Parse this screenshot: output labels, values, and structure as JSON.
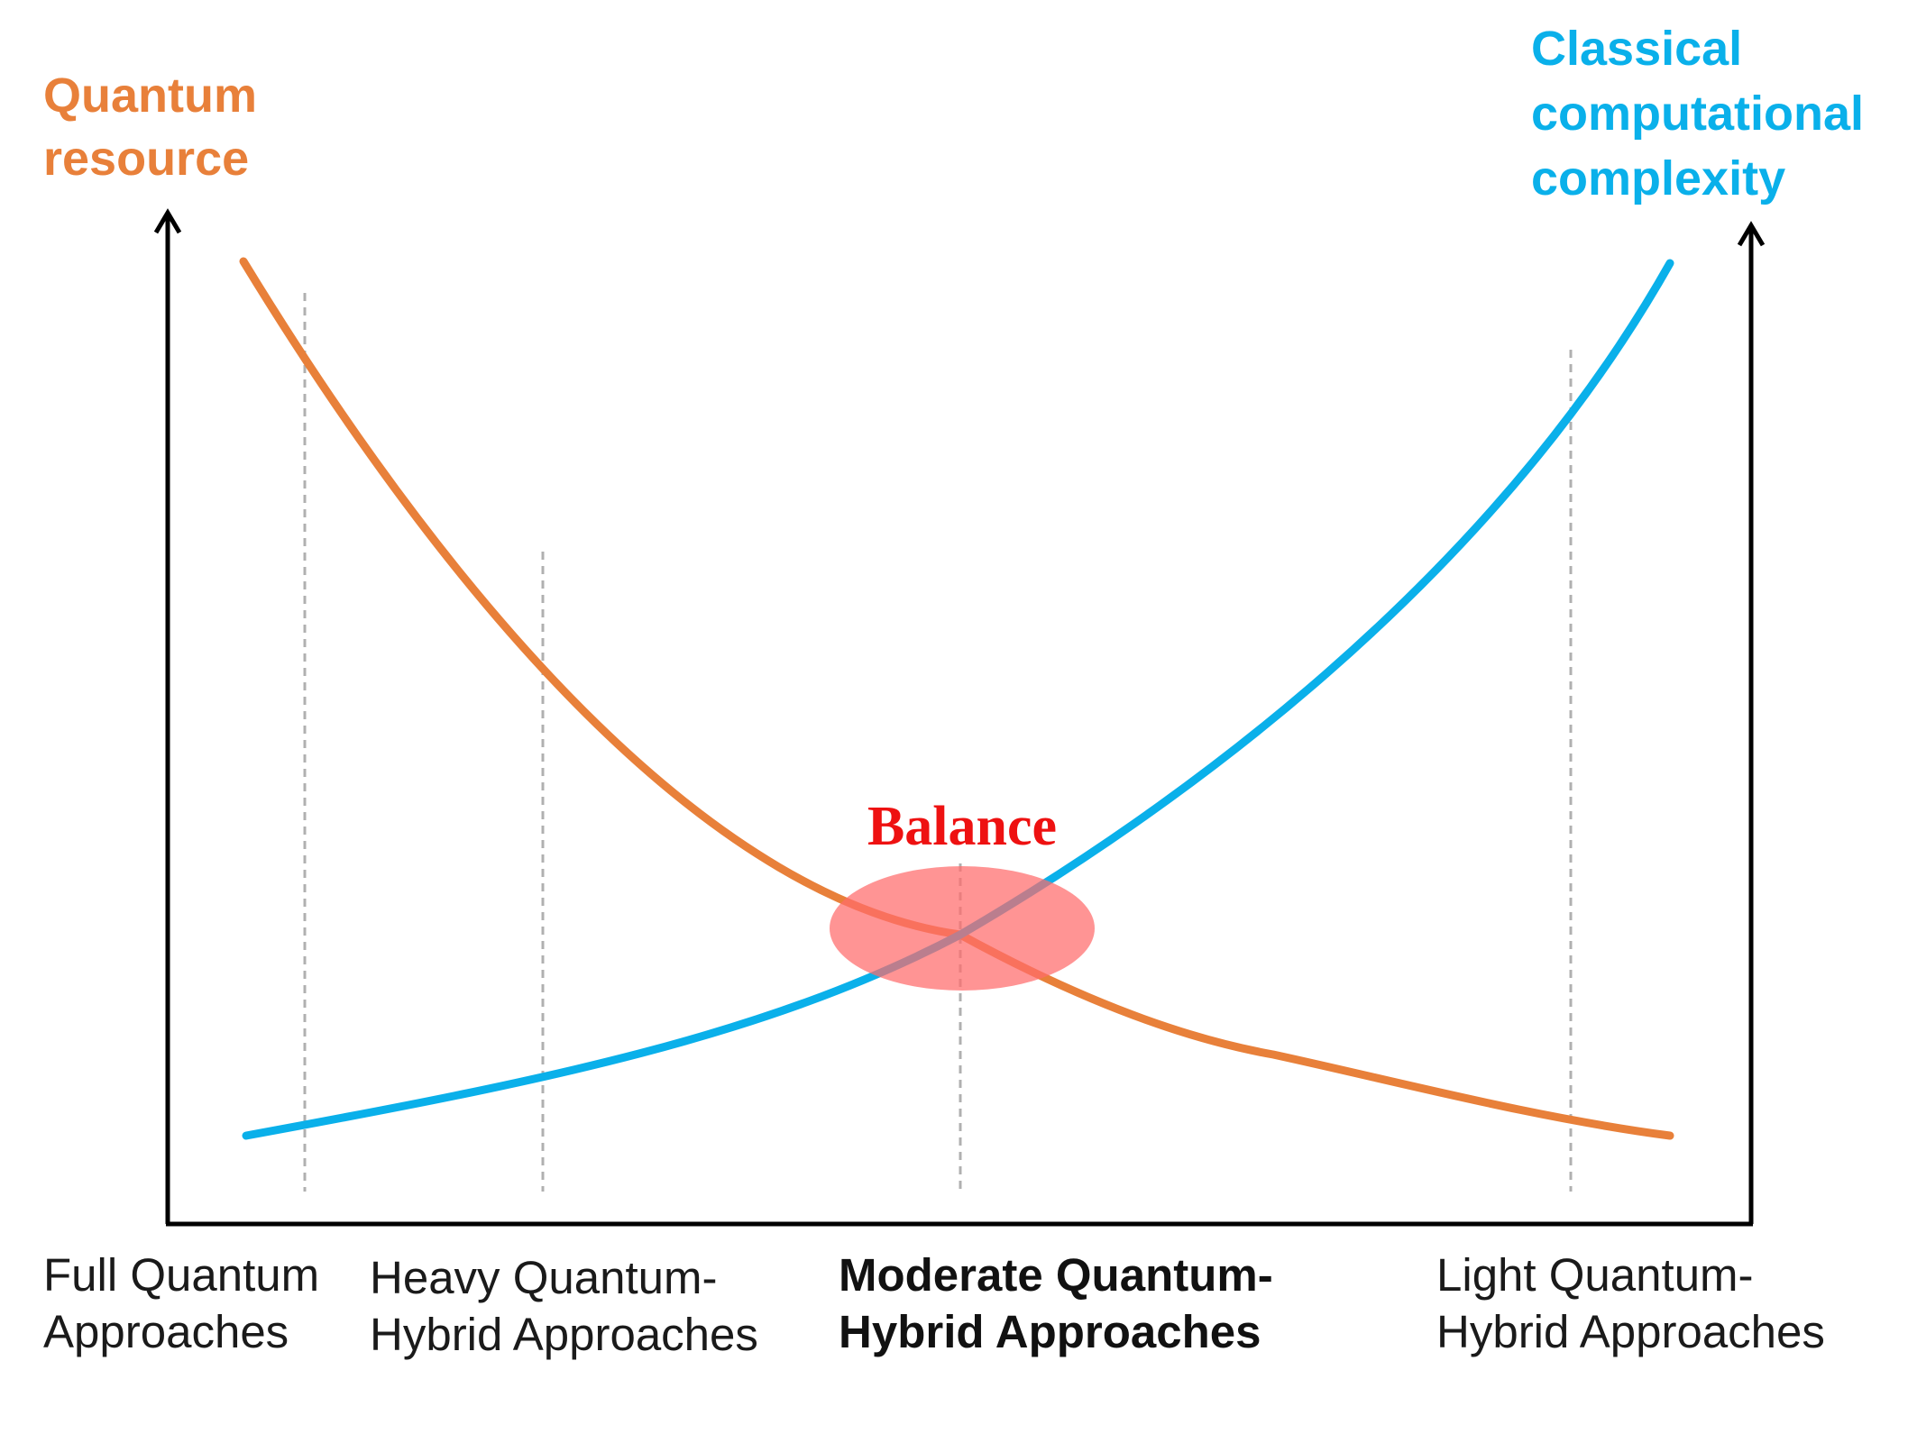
{
  "left_axis": {
    "title_lines": [
      "Quantum",
      "resource"
    ],
    "color": "#e8803a"
  },
  "right_axis": {
    "title_lines": [
      "Classical",
      "computational",
      "complexity"
    ],
    "color": "#0ab0ea"
  },
  "balance": {
    "label": "Balance",
    "label_color": "#ee1111",
    "ellipse_color": "#ff6b6b"
  },
  "categories": [
    {
      "lines": [
        "Full Quantum",
        "Approaches"
      ],
      "emphasis": false
    },
    {
      "lines": [
        "Heavy Quantum-",
        "Hybrid Approaches"
      ],
      "emphasis": false
    },
    {
      "lines": [
        "Moderate Quantum-",
        "Hybrid Approaches"
      ],
      "emphasis": true
    },
    {
      "lines": [
        "Light Quantum-",
        "Hybrid Approaches"
      ],
      "emphasis": false
    }
  ],
  "curves": {
    "quantum_resource": {
      "color": "#e8803a",
      "trend": "decreasing"
    },
    "classical_complexity": {
      "color": "#0ab0ea",
      "trend": "increasing"
    }
  },
  "axis_color": "#000000",
  "guide_color": "#b0b0b0"
}
